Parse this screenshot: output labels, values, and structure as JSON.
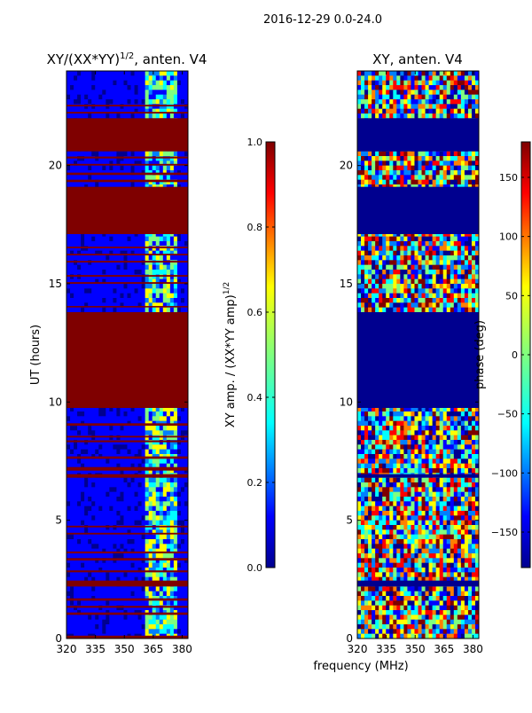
{
  "figure_title": "2016-12-29 0.0-24.0",
  "shared_xlabel": "frequency (MHz)",
  "colormap": [
    "#00008f",
    "#0000ff",
    "#007fff",
    "#00ffff",
    "#7fff7f",
    "#ffff00",
    "#ff7f00",
    "#ff0000",
    "#7f0000"
  ],
  "chart_data": [
    {
      "type": "heatmap",
      "title": "XY/(XX*YY)",
      "title_sup": "1/2",
      "title_suffix": ", anten. V4",
      "ylabel": "UT (hours)",
      "xlim": [
        320,
        383
      ],
      "ylim": [
        0,
        24
      ],
      "xticks": [
        320,
        335,
        350,
        365,
        380
      ],
      "yticks": [
        0,
        5,
        10,
        15,
        20
      ],
      "colorbar": {
        "label": "XY amp. / (XX*YY amp)",
        "label_sup": "1/2",
        "range": [
          0.0,
          1.0
        ],
        "ticks": [
          0.0,
          0.2,
          0.4,
          0.6,
          0.8,
          1.0
        ],
        "tick_labels": [
          "0.0",
          "0.2",
          "0.4",
          "0.6",
          "0.8",
          "1.0"
        ]
      },
      "saturated_bands_hours": [
        [
          0.0,
          0.12
        ],
        [
          1.0,
          1.1
        ],
        [
          1.3,
          1.38
        ],
        [
          1.6,
          1.7
        ],
        [
          2.2,
          2.45
        ],
        [
          2.8,
          2.88
        ],
        [
          3.3,
          3.4
        ],
        [
          3.6,
          3.68
        ],
        [
          4.4,
          4.47
        ],
        [
          4.7,
          4.77
        ],
        [
          6.8,
          6.95
        ],
        [
          7.1,
          7.25
        ],
        [
          7.6,
          7.7
        ],
        [
          8.3,
          8.38
        ],
        [
          8.5,
          8.57
        ],
        [
          9.0,
          9.1
        ],
        [
          9.75,
          13.8
        ],
        [
          14.0,
          14.06
        ],
        [
          15.0,
          15.07
        ],
        [
          15.3,
          15.37
        ],
        [
          15.9,
          15.97
        ],
        [
          16.2,
          16.27
        ],
        [
          16.5,
          16.57
        ],
        [
          17.1,
          19.1
        ],
        [
          19.3,
          19.4
        ],
        [
          19.6,
          19.7
        ],
        [
          20.0,
          20.07
        ],
        [
          20.3,
          20.38
        ],
        [
          20.6,
          22.0
        ],
        [
          22.2,
          22.27
        ],
        [
          22.5,
          22.57
        ]
      ],
      "gap_bands_hours": []
    },
    {
      "type": "heatmap",
      "title": "XY, anten. V4",
      "ylabel": "",
      "xlim": [
        320,
        383
      ],
      "ylim": [
        0,
        24
      ],
      "xticks": [
        320,
        335,
        350,
        365,
        380
      ],
      "yticks": [
        0,
        5,
        10,
        15,
        20
      ],
      "colorbar": {
        "label": "phase (deg)",
        "range": [
          -180,
          180
        ],
        "ticks": [
          -150,
          -100,
          -50,
          0,
          50,
          100,
          150
        ],
        "tick_labels": [
          "−150",
          "−100",
          "−50",
          "0",
          "50",
          "100",
          "150"
        ]
      },
      "saturated_bands_hours": [],
      "gap_bands_hours": [
        [
          9.75,
          13.8
        ],
        [
          17.1,
          19.1
        ],
        [
          20.6,
          22.0
        ],
        [
          6.8,
          6.95
        ],
        [
          2.2,
          2.45
        ]
      ]
    }
  ]
}
